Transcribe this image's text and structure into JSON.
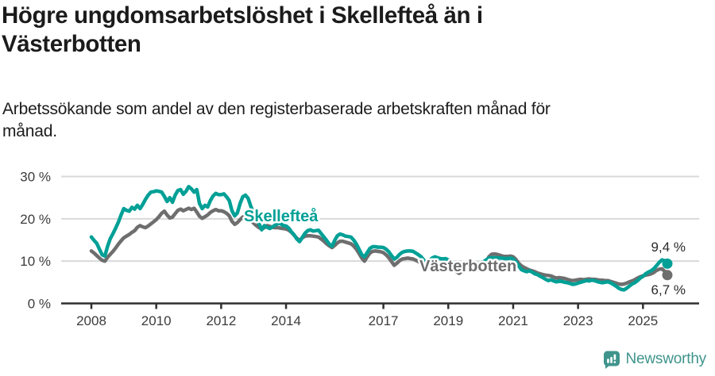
{
  "header": {
    "title_line1": "Högre ungdomsarbetslöshet i Skellefteå än i",
    "title_line2": "Västerbotten",
    "subtitle_line1": "Arbetssökande som andel av den registerbaserade arbetskraften månad för",
    "subtitle_line2": "månad."
  },
  "chart_data": {
    "type": "line",
    "frequency": "monthly",
    "start": "2008-01",
    "end": "2025-10",
    "ylim": [
      0,
      30
    ],
    "grid": "horizontal",
    "grid_color": "#d9d9d9",
    "axis_color": "#2f2f2f",
    "y_ticks": [
      {
        "value": 30,
        "label": "30 %"
      },
      {
        "value": 20,
        "label": "20 %"
      },
      {
        "value": 10,
        "label": "10 %"
      },
      {
        "value": 0,
        "label": "0 %"
      }
    ],
    "x_tick_years": [
      2008,
      2010,
      2012,
      2014,
      2017,
      2019,
      2021,
      2023,
      2025
    ],
    "series": [
      {
        "id": "skelleftea",
        "name": "Skellefteå",
        "color": "#00a096",
        "end_label": "9,4 %",
        "last_value": 9.4,
        "values": [
          15.7,
          14.9,
          14.2,
          12.8,
          11.5,
          11.2,
          13.5,
          15.3,
          16.5,
          17.8,
          19.2,
          20.9,
          22.4,
          22.0,
          21.8,
          22.7,
          22.3,
          23.2,
          22.4,
          23.4,
          24.6,
          25.6,
          26.3,
          26.4,
          26.6,
          26.5,
          26.3,
          25.3,
          24.1,
          25.0,
          23.9,
          25.6,
          26.7,
          26.9,
          25.8,
          26.5,
          27.6,
          27.1,
          26.3,
          26.9,
          23.6,
          22.4,
          23.2,
          22.8,
          24.3,
          25.4,
          26.0,
          25.7,
          25.7,
          25.9,
          25.2,
          24.3,
          21.9,
          20.7,
          21.4,
          23.6,
          25.2,
          25.6,
          24.8,
          22.9,
          21.4,
          20.1,
          18.9,
          17.4,
          18.4,
          18.0,
          17.7,
          18.1,
          18.5,
          18.9,
          18.8,
          18.4,
          18.3,
          17.8,
          16.9,
          16.2,
          15.2,
          14.6,
          15.6,
          16.6,
          17.2,
          17.4,
          17.1,
          17.2,
          17.3,
          16.5,
          15.7,
          14.9,
          14.0,
          13.5,
          14.9,
          16.0,
          16.4,
          16.2,
          15.9,
          15.8,
          15.7,
          15.0,
          14.0,
          12.8,
          11.5,
          11.0,
          12.0,
          13.0,
          13.4,
          13.4,
          13.3,
          13.3,
          13.2,
          12.8,
          12.2,
          11.3,
          10.5,
          10.9,
          11.6,
          12.1,
          12.3,
          12.4,
          12.4,
          12.3,
          11.9,
          11.5,
          11.0,
          10.2,
          9.6,
          10.2,
          10.7,
          11.0,
          10.8,
          10.6,
          10.5,
          10.6,
          10.3,
          10.0,
          9.5,
          8.9,
          8.4,
          8.9,
          9.3,
          9.5,
          9.2,
          9.0,
          9.0,
          9.3,
          9.6,
          9.8,
          10.3,
          10.7,
          10.8,
          10.8,
          10.8,
          10.7,
          10.7,
          10.6,
          10.6,
          10.7,
          10.5,
          9.8,
          8.9,
          8.0,
          7.7,
          7.5,
          7.7,
          7.4,
          7.0,
          6.8,
          6.4,
          6.1,
          5.7,
          5.4,
          5.6,
          5.3,
          5.1,
          5.3,
          5.2,
          5.0,
          4.9,
          4.7,
          4.5,
          4.6,
          4.8,
          5.0,
          5.2,
          5.4,
          5.3,
          5.5,
          5.4,
          5.2,
          5.0,
          4.9,
          5.0,
          5.1,
          4.9,
          4.5,
          4.1,
          3.6,
          3.3,
          3.2,
          3.6,
          4.1,
          4.6,
          4.9,
          5.4,
          6.0,
          6.4,
          7.0,
          7.4,
          7.7,
          8.2,
          8.9,
          9.7,
          10.3,
          10.1,
          9.4
        ]
      },
      {
        "id": "vasterbotten",
        "name": "Västerbotten",
        "color": "#6e6e6e",
        "end_label": "6,7 %",
        "last_value": 6.7,
        "values": [
          12.4,
          11.9,
          11.3,
          10.7,
          10.2,
          10.0,
          10.9,
          11.6,
          12.3,
          13.1,
          14.0,
          14.8,
          15.5,
          15.9,
          16.3,
          16.8,
          17.2,
          18.0,
          18.4,
          18.1,
          17.9,
          18.3,
          18.8,
          19.3,
          19.8,
          20.5,
          21.3,
          21.8,
          20.9,
          20.2,
          20.4,
          21.2,
          22.0,
          22.3,
          21.9,
          22.2,
          22.5,
          22.2,
          22.5,
          21.6,
          20.6,
          20.1,
          20.5,
          20.9,
          21.5,
          21.9,
          22.2,
          21.9,
          21.9,
          21.7,
          21.3,
          20.7,
          19.4,
          18.7,
          19.1,
          19.8,
          20.4,
          20.7,
          20.3,
          19.6,
          19.0,
          18.4,
          17.9,
          17.6,
          17.9,
          18.4,
          18.2,
          18.0,
          17.9,
          17.9,
          17.8,
          17.7,
          17.6,
          17.3,
          16.8,
          16.1,
          15.4,
          14.9,
          15.5,
          15.9,
          16.0,
          16.0,
          15.9,
          15.8,
          15.7,
          15.2,
          14.7,
          14.1,
          13.6,
          13.2,
          13.7,
          14.3,
          14.7,
          14.7,
          14.5,
          14.3,
          14.1,
          13.6,
          12.8,
          11.8,
          10.7,
          10.0,
          11.0,
          11.9,
          12.3,
          12.4,
          12.3,
          12.2,
          12.0,
          11.5,
          10.8,
          9.9,
          9.0,
          9.5,
          10.1,
          10.5,
          10.6,
          10.7,
          10.6,
          10.5,
          10.2,
          9.9,
          9.4,
          8.7,
          8.2,
          8.7,
          9.1,
          9.3,
          9.1,
          8.9,
          8.8,
          8.9,
          8.7,
          8.4,
          8.0,
          7.5,
          7.1,
          7.6,
          8.0,
          8.1,
          7.9,
          7.8,
          7.8,
          8.0,
          8.3,
          8.6,
          9.7,
          11.0,
          11.6,
          11.7,
          11.6,
          11.4,
          11.2,
          11.1,
          11.1,
          11.2,
          11.0,
          10.4,
          9.5,
          8.9,
          8.5,
          8.2,
          7.9,
          7.7,
          7.5,
          7.2,
          7.0,
          6.8,
          6.7,
          6.6,
          6.5,
          6.2,
          6.0,
          6.1,
          6.0,
          5.9,
          5.7,
          5.5,
          5.4,
          5.5,
          5.6,
          5.7,
          5.6,
          5.7,
          5.8,
          5.7,
          5.7,
          5.6,
          5.5,
          5.5,
          5.4,
          5.4,
          5.2,
          5.0,
          4.8,
          4.6,
          4.5,
          4.6,
          4.8,
          5.1,
          5.3,
          5.6,
          6.0,
          6.3,
          6.5,
          6.7,
          6.8,
          7.0,
          7.3,
          7.8,
          8.1,
          8.2,
          7.6,
          6.7
        ]
      }
    ]
  },
  "footer": {
    "brand": "Newsworthy",
    "brand_color": "#3f948c",
    "logo_icon": "bar-chart-speech-bubble"
  }
}
